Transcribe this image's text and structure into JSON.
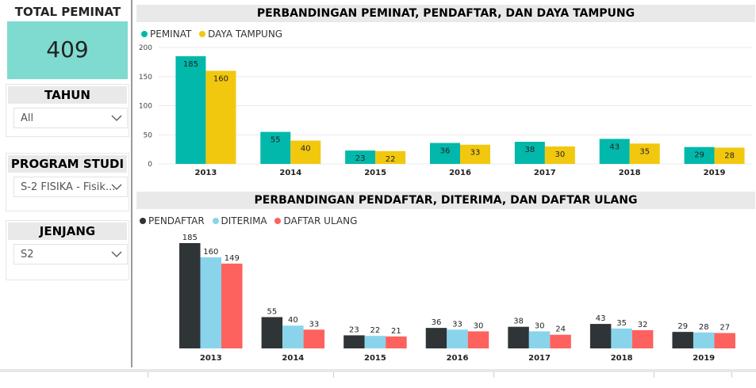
{
  "sidebar": {
    "total": {
      "title": "TOTAL PEMINAT",
      "value": "409"
    },
    "tahun": {
      "title": "TAHUN",
      "selected": "All"
    },
    "program_studi": {
      "title": "PROGRAM STUDI",
      "selected": "S-2 FISIKA - Fisik..."
    },
    "jenjang": {
      "title": "JENJANG",
      "selected": "S2"
    }
  },
  "colors": {
    "peminat": "#01b8aa",
    "daya_tampung": "#f2c80f",
    "pendaftar": "#2f3437",
    "diterima": "#8ad4eb",
    "daftar_ulang": "#fd625e"
  },
  "chart_data": [
    {
      "type": "bar",
      "title": "PERBANDINGAN PEMINAT, PENDAFTAR, DAN DAYA TAMPUNG",
      "categories": [
        "2013",
        "2014",
        "2015",
        "2016",
        "2017",
        "2018",
        "2019"
      ],
      "series": [
        {
          "name": "PEMINAT",
          "values": [
            185,
            55,
            23,
            36,
            38,
            43,
            29
          ]
        },
        {
          "name": "DAYA TAMPUNG",
          "values": [
            160,
            40,
            22,
            33,
            30,
            35,
            28
          ]
        }
      ],
      "ylim": [
        0,
        200
      ],
      "yticks": [
        0,
        50,
        100,
        150,
        200
      ],
      "legend": "top-left",
      "grid": true
    },
    {
      "type": "bar",
      "title": "PERBANDINGAN PENDAFTAR, DITERIMA, DAN DAFTAR ULANG",
      "categories": [
        "2013",
        "2014",
        "2015",
        "2016",
        "2017",
        "2018",
        "2019"
      ],
      "series": [
        {
          "name": "PENDAFTAR",
          "values": [
            185,
            55,
            23,
            36,
            38,
            43,
            29
          ]
        },
        {
          "name": "DITERIMA",
          "values": [
            160,
            40,
            22,
            33,
            30,
            35,
            28
          ]
        },
        {
          "name": "DAFTAR ULANG",
          "values": [
            149,
            33,
            21,
            30,
            24,
            32,
            27
          ]
        }
      ],
      "ylim": [
        0,
        185
      ],
      "legend": "top-left",
      "grid": false
    }
  ]
}
